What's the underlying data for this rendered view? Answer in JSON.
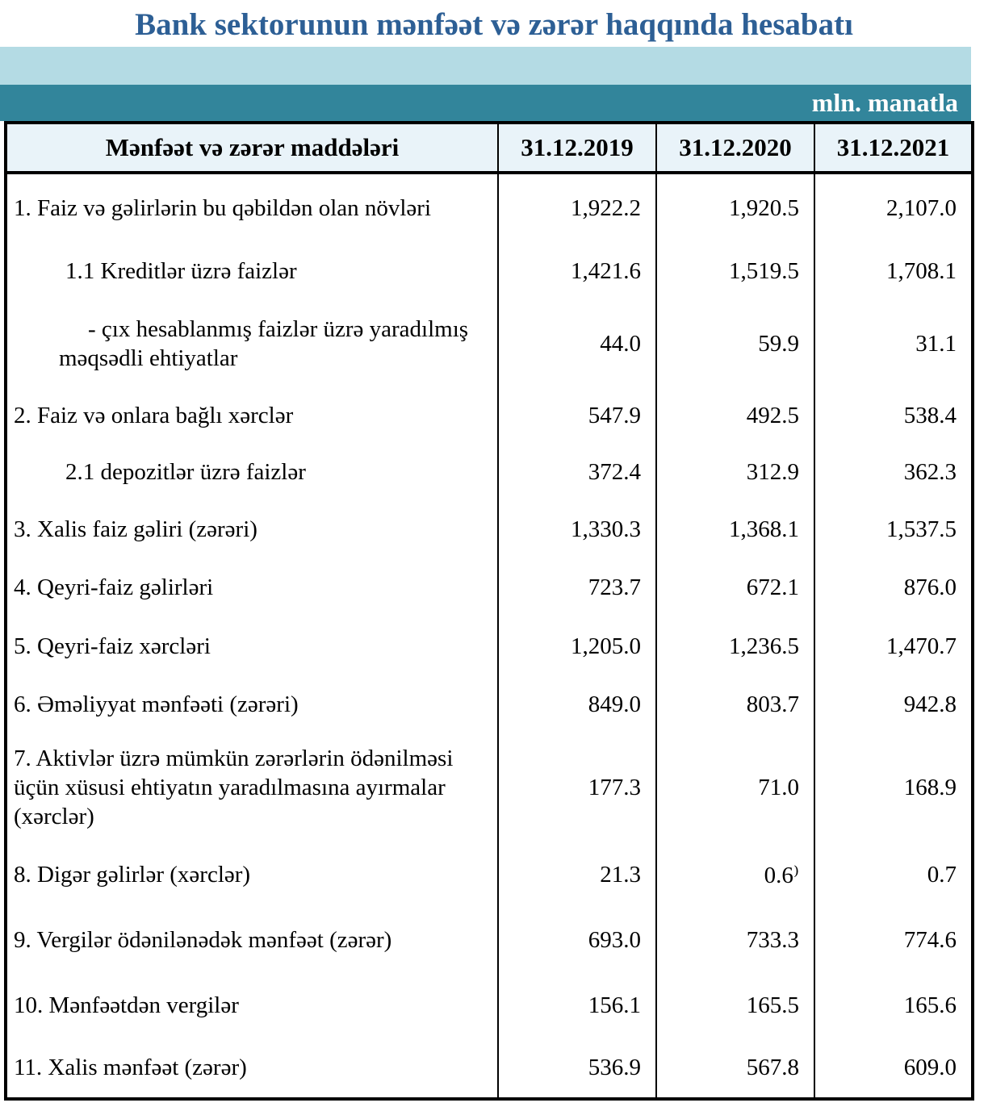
{
  "title": "Bank sektorunun mənfəət və zərər haqqında hesabatı",
  "unit_label": "mln. manatla",
  "colors": {
    "title_blue": "#2d5f95",
    "band_light": "#b4dbe4",
    "band_teal": "#32859b",
    "header_bg": "#e9f3f9",
    "border": "#000000"
  },
  "table": {
    "headers": [
      "Mənfəət və zərər maddələri",
      "31.12.2019",
      "31.12.2020",
      "31.12.2021"
    ],
    "rows": [
      {
        "label": "1. Faiz və gəlirlərin bu qəbildən olan növləri",
        "values": [
          "1,922.2",
          "1,920.5",
          "2,107.0"
        ]
      },
      {
        "label": "1.1 Kreditlər üzrə faizlər",
        "values": [
          "1,421.6",
          "1,519.5",
          "1,708.1"
        ]
      },
      {
        "label": "-  çıx hesablanmış faizlər üzrə yaradılmış məqsədli ehtiyatlar",
        "values": [
          "44.0",
          "59.9",
          "31.1"
        ]
      },
      {
        "label": "2. Faiz və onlara bağlı xərclər",
        "values": [
          "547.9",
          "492.5",
          "538.4"
        ]
      },
      {
        "label": "2.1 depozitlər üzrə faizlər",
        "values": [
          "372.4",
          "312.9",
          "362.3"
        ]
      },
      {
        "label": "3. Xalis faiz gəliri (zərəri)",
        "values": [
          "1,330.3",
          "1,368.1",
          "1,537.5"
        ]
      },
      {
        "label": "4. Qeyri-faiz gəlirləri",
        "values": [
          "723.7",
          "672.1",
          "876.0"
        ]
      },
      {
        "label": "5. Qeyri-faiz xərcləri",
        "values": [
          "1,205.0",
          "1,236.5",
          "1,470.7"
        ]
      },
      {
        "label": "6. Əməliyyat mənfəəti (zərəri)",
        "values": [
          "849.0",
          "803.7",
          "942.8"
        ]
      },
      {
        "label": "7. Aktivlər üzrə mümkün zərərlərin ödənilməsi üçün xüsusi ehtiyatın yaradılmasına ayırmalar (xərclər)",
        "values": [
          "177.3",
          "71.0",
          "168.9"
        ]
      },
      {
        "label": "8. Digər gəlirlər (xərclər)",
        "values": [
          "21.3",
          "0.6⁾",
          "0.7"
        ]
      },
      {
        "label": "9. Vergilər ödənilənədək mənfəət (zərər)",
        "values": [
          "693.0",
          "733.3",
          "774.6"
        ]
      },
      {
        "label": "10. Mənfəətdən vergilər",
        "values": [
          "156.1",
          "165.5",
          "165.6"
        ]
      },
      {
        "label": "11. Xalis mənfəət (zərər)",
        "values": [
          "536.9",
          "567.8",
          "609.0"
        ]
      }
    ]
  }
}
